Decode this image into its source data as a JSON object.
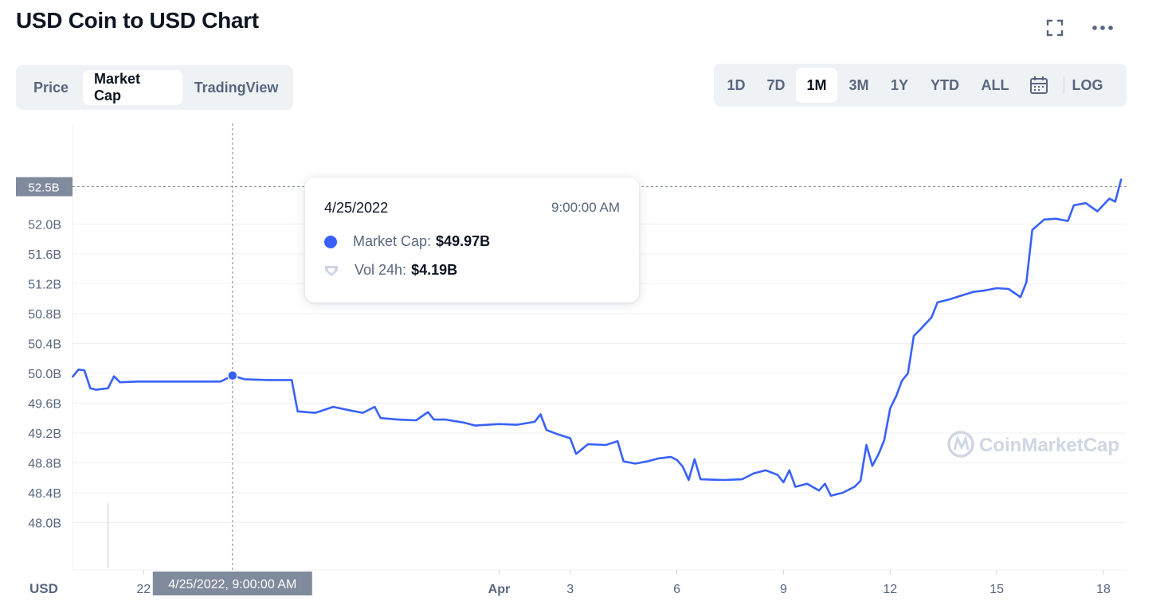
{
  "header": {
    "title": "USD Coin to USD Chart",
    "fullscreen_icon": "expand-icon",
    "more_icon": "more-horizontal-icon"
  },
  "view_tabs": [
    {
      "label": "Price",
      "active": false
    },
    {
      "label": "Market Cap",
      "active": true
    },
    {
      "label": "TradingView",
      "active": false
    }
  ],
  "range_tabs": [
    {
      "label": "1D",
      "active": false
    },
    {
      "label": "7D",
      "active": false
    },
    {
      "label": "1M",
      "active": true
    },
    {
      "label": "3M",
      "active": false
    },
    {
      "label": "1Y",
      "active": false
    },
    {
      "label": "YTD",
      "active": false
    },
    {
      "label": "ALL",
      "active": false
    }
  ],
  "calendar_icon": "calendar-icon",
  "log_label": "LOG",
  "tooltip": {
    "date": "4/25/2022",
    "time": "9:00:00 AM",
    "market_cap_label": "Market Cap:",
    "market_cap_value": "$49.97B",
    "vol_label": "Vol 24h:",
    "vol_value": "$4.19B"
  },
  "watermark": "CoinMarketCap",
  "colors": {
    "line": "#3861fb",
    "text_dark": "#0d1421",
    "text_muted": "#58667e",
    "tab_bg": "#eff2f5",
    "axis_label_bg": "#808a9d"
  },
  "chart_data": {
    "type": "line",
    "title": "USD Coin to USD Chart",
    "ylabel": "",
    "xlabel": "",
    "ylim": [
      47.6,
      52.9
    ],
    "y_ticks": [
      {
        "value": 52.0,
        "label": "52.0B"
      },
      {
        "value": 51.6,
        "label": "51.6B"
      },
      {
        "value": 51.2,
        "label": "51.2B"
      },
      {
        "value": 50.8,
        "label": "50.8B"
      },
      {
        "value": 50.4,
        "label": "50.4B"
      },
      {
        "value": 50.0,
        "label": "50.0B"
      },
      {
        "value": 49.6,
        "label": "49.6B"
      },
      {
        "value": 49.2,
        "label": "49.2B"
      },
      {
        "value": 48.8,
        "label": "48.8B"
      },
      {
        "value": 48.4,
        "label": "48.4B"
      },
      {
        "value": 48.0,
        "label": "48.0B"
      }
    ],
    "x_start": "2022-03-20",
    "x_end": "2022-04-18T14:00",
    "x_ticks": [
      {
        "date": "2022-03-22",
        "label": "22"
      },
      {
        "date": "2022-04-01",
        "label": "Apr"
      },
      {
        "date": "2022-04-03",
        "label": "3"
      },
      {
        "date": "2022-04-06",
        "label": "6"
      },
      {
        "date": "2022-04-09",
        "label": "9"
      },
      {
        "date": "2022-04-12",
        "label": "12"
      },
      {
        "date": "2022-04-15",
        "label": "15"
      },
      {
        "date": "2022-04-18",
        "label": "18"
      }
    ],
    "x_axis_unit_label": "USD",
    "current_value_label": "52.5B",
    "current_value": 52.5,
    "crosshair": {
      "date": "2022-03-24T12:00",
      "value": 49.97,
      "label": "4/25/2022, 9:00:00 AM"
    },
    "grid": true,
    "legend": "none",
    "series": [
      {
        "values": [
          [
            "2022-03-20T00:00",
            49.95
          ],
          [
            "2022-03-20T04:00",
            50.05
          ],
          [
            "2022-03-20T08:00",
            50.04
          ],
          [
            "2022-03-20T12:00",
            49.8
          ],
          [
            "2022-03-20T16:00",
            49.78
          ],
          [
            "2022-03-21T00:00",
            49.8
          ],
          [
            "2022-03-21T04:00",
            49.96
          ],
          [
            "2022-03-21T08:00",
            49.88
          ],
          [
            "2022-03-21T20:00",
            49.89
          ],
          [
            "2022-03-22T12:00",
            49.89
          ],
          [
            "2022-03-23T08:00",
            49.89
          ],
          [
            "2022-03-24T04:00",
            49.89
          ],
          [
            "2022-03-24T12:00",
            49.97
          ],
          [
            "2022-03-24T20:00",
            49.92
          ],
          [
            "2022-03-25T12:00",
            49.91
          ],
          [
            "2022-03-26T04:00",
            49.91
          ],
          [
            "2022-03-26T08:00",
            49.49
          ],
          [
            "2022-03-26T20:00",
            49.47
          ],
          [
            "2022-03-27T08:00",
            49.55
          ],
          [
            "2022-03-27T20:00",
            49.5
          ],
          [
            "2022-03-28T04:00",
            49.47
          ],
          [
            "2022-03-28T12:00",
            49.55
          ],
          [
            "2022-03-28T16:00",
            49.4
          ],
          [
            "2022-03-29T04:00",
            49.38
          ],
          [
            "2022-03-29T16:00",
            49.37
          ],
          [
            "2022-03-30T00:00",
            49.48
          ],
          [
            "2022-03-30T04:00",
            49.38
          ],
          [
            "2022-03-30T12:00",
            49.38
          ],
          [
            "2022-03-31T00:00",
            49.34
          ],
          [
            "2022-03-31T08:00",
            49.3
          ],
          [
            "2022-04-01T00:00",
            49.32
          ],
          [
            "2022-04-01T12:00",
            49.31
          ],
          [
            "2022-04-02T00:00",
            49.35
          ],
          [
            "2022-04-02T04:00",
            49.45
          ],
          [
            "2022-04-02T08:00",
            49.24
          ],
          [
            "2022-04-02T16:00",
            49.18
          ],
          [
            "2022-04-03T00:00",
            49.13
          ],
          [
            "2022-04-03T04:00",
            48.92
          ],
          [
            "2022-04-03T12:00",
            49.05
          ],
          [
            "2022-04-04T00:00",
            49.04
          ],
          [
            "2022-04-04T08:00",
            49.09
          ],
          [
            "2022-04-04T12:00",
            48.82
          ],
          [
            "2022-04-04T20:00",
            48.79
          ],
          [
            "2022-04-05T04:00",
            48.82
          ],
          [
            "2022-04-05T12:00",
            48.86
          ],
          [
            "2022-04-05T20:00",
            48.88
          ],
          [
            "2022-04-06T00:00",
            48.84
          ],
          [
            "2022-04-06T04:00",
            48.75
          ],
          [
            "2022-04-06T08:00",
            48.57
          ],
          [
            "2022-04-06T12:00",
            48.85
          ],
          [
            "2022-04-06T16:00",
            48.58
          ],
          [
            "2022-04-07T08:00",
            48.57
          ],
          [
            "2022-04-07T20:00",
            48.58
          ],
          [
            "2022-04-08T04:00",
            48.66
          ],
          [
            "2022-04-08T12:00",
            48.7
          ],
          [
            "2022-04-08T20:00",
            48.64
          ],
          [
            "2022-04-09T00:00",
            48.54
          ],
          [
            "2022-04-09T04:00",
            48.7
          ],
          [
            "2022-04-09T08:00",
            48.48
          ],
          [
            "2022-04-09T16:00",
            48.52
          ],
          [
            "2022-04-10T00:00",
            48.43
          ],
          [
            "2022-04-10T04:00",
            48.52
          ],
          [
            "2022-04-10T08:00",
            48.36
          ],
          [
            "2022-04-10T16:00",
            48.4
          ],
          [
            "2022-04-11T00:00",
            48.48
          ],
          [
            "2022-04-11T04:00",
            48.56
          ],
          [
            "2022-04-11T08:00",
            49.04
          ],
          [
            "2022-04-11T12:00",
            48.76
          ],
          [
            "2022-04-11T16:00",
            48.91
          ],
          [
            "2022-04-11T20:00",
            49.1
          ],
          [
            "2022-04-12T00:00",
            49.53
          ],
          [
            "2022-04-12T04:00",
            49.69
          ],
          [
            "2022-04-12T08:00",
            49.9
          ],
          [
            "2022-04-12T12:00",
            50.0
          ],
          [
            "2022-04-12T16:00",
            50.5
          ],
          [
            "2022-04-12T20:00",
            50.58
          ],
          [
            "2022-04-13T04:00",
            50.75
          ],
          [
            "2022-04-13T08:00",
            50.95
          ],
          [
            "2022-04-13T16:00",
            50.99
          ],
          [
            "2022-04-14T00:00",
            51.04
          ],
          [
            "2022-04-14T08:00",
            51.09
          ],
          [
            "2022-04-14T16:00",
            51.11
          ],
          [
            "2022-04-15T00:00",
            51.14
          ],
          [
            "2022-04-15T08:00",
            51.13
          ],
          [
            "2022-04-15T16:00",
            51.02
          ],
          [
            "2022-04-15T20:00",
            51.22
          ],
          [
            "2022-04-16T00:00",
            51.92
          ],
          [
            "2022-04-16T08:00",
            52.06
          ],
          [
            "2022-04-16T16:00",
            52.07
          ],
          [
            "2022-04-17T00:00",
            52.04
          ],
          [
            "2022-04-17T04:00",
            52.25
          ],
          [
            "2022-04-17T12:00",
            52.28
          ],
          [
            "2022-04-17T20:00",
            52.17
          ],
          [
            "2022-04-18T04:00",
            52.34
          ],
          [
            "2022-04-18T08:00",
            52.3
          ],
          [
            "2022-04-18T12:00",
            52.6
          ]
        ]
      }
    ]
  }
}
